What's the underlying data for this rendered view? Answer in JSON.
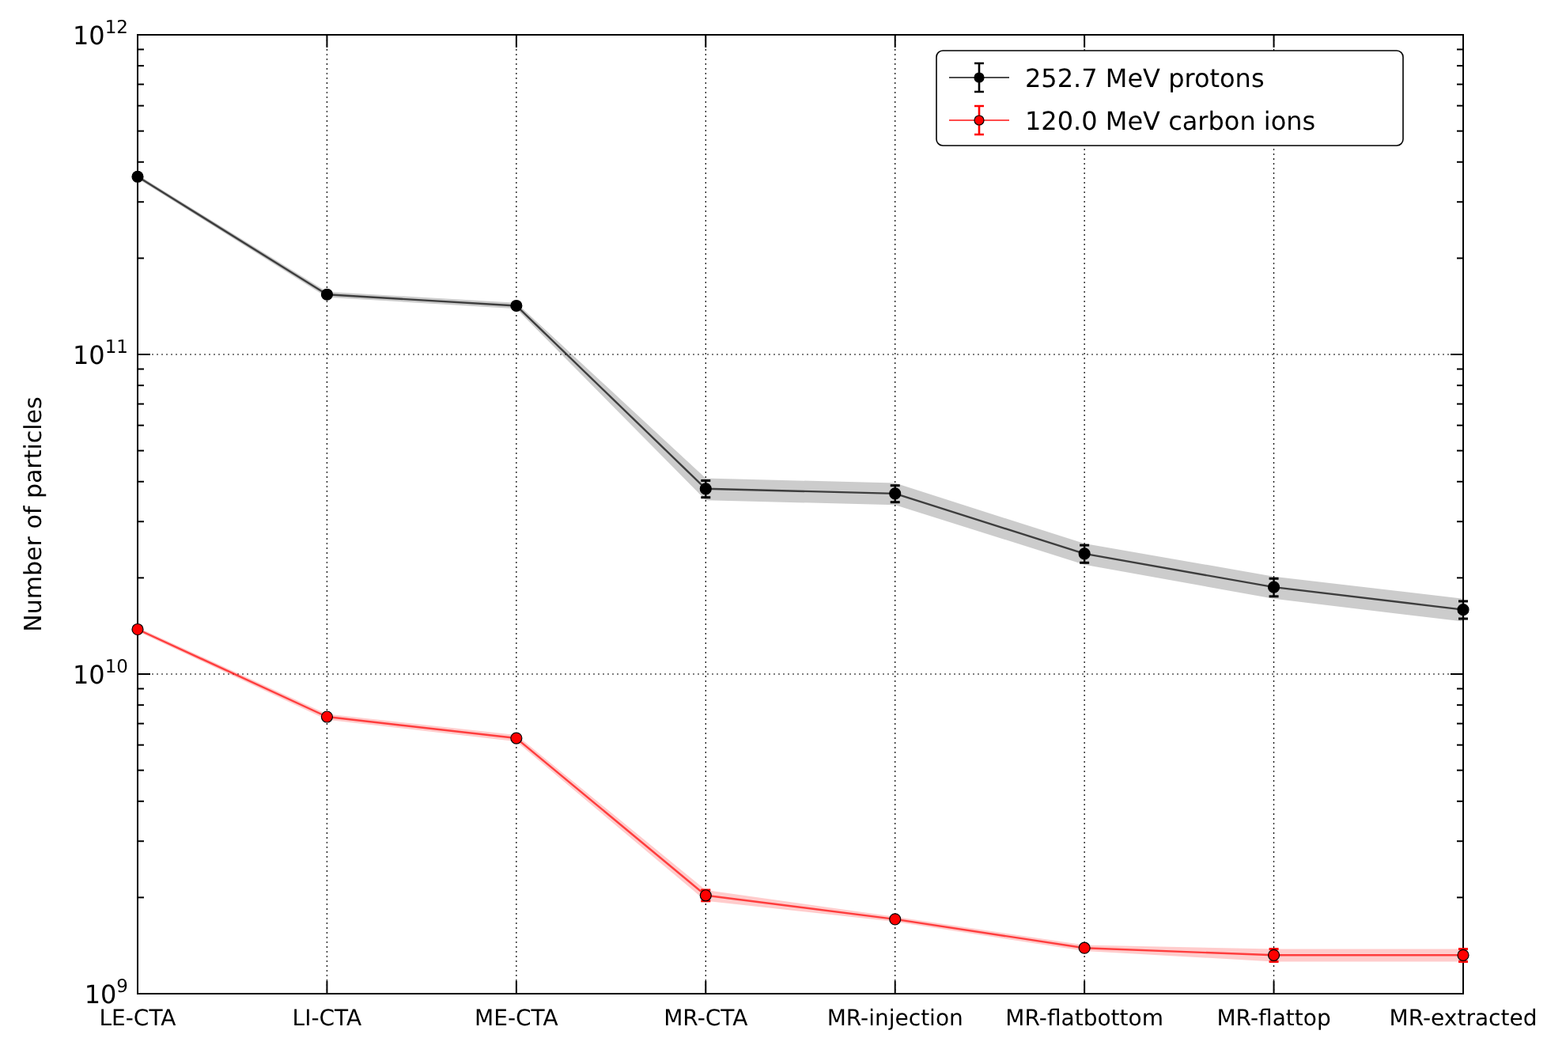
{
  "chart_data": {
    "type": "line",
    "ylabel": "Number of particles",
    "log": true,
    "grid": true,
    "legend": "top right",
    "marker": "circle",
    "line_style": "solid",
    "categories": [
      "LE-CTA",
      "LI-CTA",
      "ME-CTA",
      "MR-CTA",
      "MR-injection",
      "MR-flatbottom",
      "MR-flattop",
      "MR-extracted"
    ],
    "ylim": [
      1000000000.0,
      1000000000000.0
    ],
    "yticks": [
      {
        "value": 1000000000.0,
        "label": "10$^{9}$"
      },
      {
        "value": 2000000000.0,
        "label": null
      },
      {
        "value": 3000000000.0,
        "label": null
      },
      {
        "value": 4000000000.0,
        "label": null
      },
      {
        "value": 5000000000.0,
        "label": null
      },
      {
        "value": 6000000000.0,
        "label": null
      },
      {
        "value": 7000000000.0,
        "label": null
      },
      {
        "value": 8000000000.0,
        "label": null
      },
      {
        "value": 9000000000.0,
        "label": null
      },
      {
        "value": 10000000000.0,
        "label": "10$^{10}$"
      },
      {
        "value": 20000000000.0,
        "label": null
      },
      {
        "value": 30000000000.0,
        "label": null
      },
      {
        "value": 40000000000.0,
        "label": null
      },
      {
        "value": 50000000000.0,
        "label": null
      },
      {
        "value": 60000000000.0,
        "label": null
      },
      {
        "value": 70000000000.0,
        "label": null
      },
      {
        "value": 80000000000.0,
        "label": null
      },
      {
        "value": 90000000000.0,
        "label": null
      },
      {
        "value": 100000000000.0,
        "label": "10$^{11}$"
      },
      {
        "value": 200000000000.0,
        "label": null
      },
      {
        "value": 300000000000.0,
        "label": null
      },
      {
        "value": 400000000000.0,
        "label": null
      },
      {
        "value": 500000000000.0,
        "label": null
      },
      {
        "value": 600000000000.0,
        "label": null
      },
      {
        "value": 700000000000.0,
        "label": null
      },
      {
        "value": 800000000000.0,
        "label": null
      },
      {
        "value": 900000000000.0,
        "label": null
      },
      {
        "value": 1000000000000.0,
        "label": "10$^{12}$"
      }
    ],
    "series": [
      {
        "name": "252.7 MeV protons",
        "color": "#000000",
        "values": [
          360000000000.0,
          154000000000.0,
          142000000000.0,
          38000000000.0,
          36700000000.0,
          23800000000.0,
          18700000000.0,
          15900000000.0
        ],
        "errors": [
          null,
          null,
          null,
          2300000000.0,
          2200000000.0,
          1500000000.0,
          1200000000.0,
          1000000000.0
        ],
        "lower": [
          355000000000.0,
          151000000000.0,
          139000000000.0,
          35000000000.0,
          33800000000.0,
          22000000000.0,
          17200000000.0,
          14600000000.0
        ],
        "upper": [
          365000000000.0,
          157000000000.0,
          145000000000.0,
          41000000000.0,
          39600000000.0,
          25600000000.0,
          20200000000.0,
          17200000000.0
        ]
      },
      {
        "name": "120.0 MeV carbon ions",
        "color": "#ff0000",
        "values": [
          13800000000.0,
          7350000000.0,
          6300000000.0,
          2030000000.0,
          1710000000.0,
          1390000000.0,
          1320000000.0,
          1320000000.0
        ],
        "errors": [
          null,
          null,
          null,
          80000000.0,
          null,
          null,
          60000000.0,
          60000000.0
        ],
        "lower": [
          13600000000.0,
          7200000000.0,
          6150000000.0,
          1950000000.0,
          1680000000.0,
          1360000000.0,
          1260000000.0,
          1260000000.0
        ],
        "upper": [
          14000000000.0,
          7500000000.0,
          6450000000.0,
          2110000000.0,
          1740000000.0,
          1420000000.0,
          1380000000.0,
          1380000000.0
        ]
      }
    ]
  }
}
